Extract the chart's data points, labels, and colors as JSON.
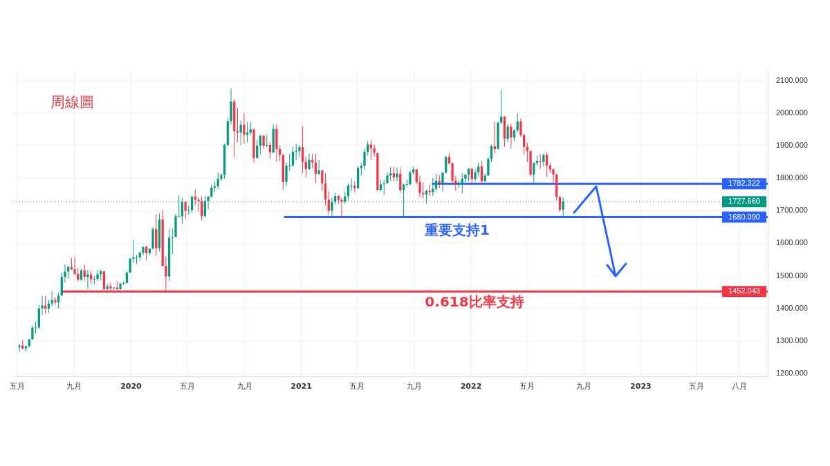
{
  "chart_data": {
    "type": "candlestick",
    "title": "周線圖",
    "x": [
      "2019-05-06",
      "2019-05-13",
      "2019-05-20",
      "2019-05-27",
      "2019-06-03",
      "2019-06-10",
      "2019-06-17",
      "2019-06-24",
      "2019-07-01",
      "2019-07-08",
      "2019-07-15",
      "2019-07-22",
      "2019-07-29",
      "2019-08-05",
      "2019-08-12",
      "2019-08-19",
      "2019-08-26",
      "2019-09-02",
      "2019-09-09",
      "2019-09-16",
      "2019-09-23",
      "2019-09-30",
      "2019-10-07",
      "2019-10-14",
      "2019-10-21",
      "2019-10-28",
      "2019-11-04",
      "2019-11-11",
      "2019-11-18",
      "2019-11-25",
      "2019-12-02",
      "2019-12-09",
      "2019-12-16",
      "2019-12-23",
      "2019-12-30",
      "2020-01-06",
      "2020-01-13",
      "2020-01-20",
      "2020-01-27",
      "2020-02-03",
      "2020-02-10",
      "2020-02-17",
      "2020-02-24",
      "2020-03-02",
      "2020-03-09",
      "2020-03-16",
      "2020-03-23",
      "2020-03-30",
      "2020-04-06",
      "2020-04-13",
      "2020-04-20",
      "2020-04-27",
      "2020-05-04",
      "2020-05-11",
      "2020-05-18",
      "2020-05-25",
      "2020-06-01",
      "2020-06-08",
      "2020-06-15",
      "2020-06-22",
      "2020-06-29",
      "2020-07-06",
      "2020-07-13",
      "2020-07-20",
      "2020-07-27",
      "2020-08-03",
      "2020-08-10",
      "2020-08-17",
      "2020-08-24",
      "2020-08-31",
      "2020-09-07",
      "2020-09-14",
      "2020-09-21",
      "2020-09-28",
      "2020-10-05",
      "2020-10-12",
      "2020-10-19",
      "2020-10-26",
      "2020-11-02",
      "2020-11-09",
      "2020-11-16",
      "2020-11-23",
      "2020-11-30",
      "2020-12-07",
      "2020-12-14",
      "2020-12-21",
      "2020-12-28",
      "2021-01-04",
      "2021-01-11",
      "2021-01-18",
      "2021-01-25",
      "2021-02-01",
      "2021-02-08",
      "2021-02-15",
      "2021-02-22",
      "2021-03-01",
      "2021-03-08",
      "2021-03-15",
      "2021-03-22",
      "2021-03-29",
      "2021-04-05",
      "2021-04-12",
      "2021-04-19",
      "2021-04-26",
      "2021-05-03",
      "2021-05-10",
      "2021-05-17",
      "2021-05-24",
      "2021-05-31",
      "2021-06-07",
      "2021-06-14",
      "2021-06-21",
      "2021-06-28",
      "2021-07-05",
      "2021-07-12",
      "2021-07-19",
      "2021-07-26",
      "2021-08-02",
      "2021-08-09",
      "2021-08-16",
      "2021-08-23",
      "2021-08-30",
      "2021-09-06",
      "2021-09-13",
      "2021-09-20",
      "2021-09-27",
      "2021-10-04",
      "2021-10-11",
      "2021-10-18",
      "2021-10-25",
      "2021-11-01",
      "2021-11-08",
      "2021-11-15",
      "2021-11-22",
      "2021-11-29",
      "2021-12-06",
      "2021-12-13",
      "2021-12-20",
      "2021-12-27",
      "2022-01-03",
      "2022-01-10",
      "2022-01-17",
      "2022-01-24",
      "2022-01-31",
      "2022-02-07",
      "2022-02-14",
      "2022-02-21",
      "2022-02-28",
      "2022-03-07",
      "2022-03-14",
      "2022-03-21",
      "2022-03-28",
      "2022-04-04",
      "2022-04-11",
      "2022-04-18",
      "2022-04-25",
      "2022-05-02",
      "2022-05-09",
      "2022-05-16",
      "2022-05-23",
      "2022-05-30",
      "2022-06-06",
      "2022-06-13",
      "2022-06-20",
      "2022-06-27",
      "2022-07-04",
      "2022-07-11",
      "2022-07-18"
    ],
    "ohlc": [
      [
        1282,
        1290,
        1266,
        1286
      ],
      [
        1286,
        1303,
        1274,
        1277
      ],
      [
        1277,
        1286,
        1268,
        1284
      ],
      [
        1284,
        1306,
        1280,
        1305
      ],
      [
        1305,
        1348,
        1304,
        1341
      ],
      [
        1341,
        1359,
        1323,
        1341
      ],
      [
        1341,
        1411,
        1338,
        1400
      ],
      [
        1400,
        1439,
        1381,
        1409
      ],
      [
        1409,
        1438,
        1383,
        1399
      ],
      [
        1399,
        1426,
        1386,
        1415
      ],
      [
        1415,
        1453,
        1406,
        1426
      ],
      [
        1426,
        1434,
        1411,
        1419
      ],
      [
        1419,
        1449,
        1400,
        1440
      ],
      [
        1440,
        1510,
        1437,
        1497
      ],
      [
        1497,
        1535,
        1480,
        1513
      ],
      [
        1513,
        1531,
        1491,
        1527
      ],
      [
        1527,
        1555,
        1518,
        1520
      ],
      [
        1520,
        1557,
        1502,
        1506
      ],
      [
        1506,
        1524,
        1484,
        1488
      ],
      [
        1488,
        1522,
        1485,
        1517
      ],
      [
        1517,
        1535,
        1485,
        1497
      ],
      [
        1497,
        1519,
        1459,
        1504
      ],
      [
        1504,
        1517,
        1474,
        1489
      ],
      [
        1489,
        1500,
        1474,
        1490
      ],
      [
        1490,
        1518,
        1484,
        1505
      ],
      [
        1505,
        1519,
        1486,
        1514
      ],
      [
        1514,
        1514,
        1456,
        1459
      ],
      [
        1459,
        1475,
        1456,
        1468
      ],
      [
        1468,
        1478,
        1455,
        1462
      ],
      [
        1462,
        1465,
        1456,
        1464
      ],
      [
        1464,
        1485,
        1457,
        1459
      ],
      [
        1459,
        1479,
        1456,
        1476
      ],
      [
        1476,
        1483,
        1472,
        1478
      ],
      [
        1478,
        1514,
        1477,
        1510
      ],
      [
        1510,
        1555,
        1509,
        1552
      ],
      [
        1552,
        1611,
        1540,
        1557
      ],
      [
        1557,
        1563,
        1536,
        1557
      ],
      [
        1557,
        1575,
        1549,
        1571
      ],
      [
        1571,
        1589,
        1563,
        1589
      ],
      [
        1589,
        1591,
        1547,
        1570
      ],
      [
        1570,
        1584,
        1564,
        1584
      ],
      [
        1584,
        1649,
        1581,
        1643
      ],
      [
        1643,
        1689,
        1563,
        1585
      ],
      [
        1585,
        1692,
        1576,
        1673
      ],
      [
        1673,
        1703,
        1529,
        1530
      ],
      [
        1530,
        1560,
        1451,
        1498
      ],
      [
        1498,
        1645,
        1484,
        1617
      ],
      [
        1617,
        1645,
        1567,
        1620
      ],
      [
        1620,
        1690,
        1619,
        1683
      ],
      [
        1683,
        1747,
        1681,
        1683
      ],
      [
        1683,
        1739,
        1659,
        1727
      ],
      [
        1727,
        1730,
        1675,
        1700
      ],
      [
        1700,
        1716,
        1688,
        1702
      ],
      [
        1702,
        1745,
        1693,
        1743
      ],
      [
        1743,
        1765,
        1717,
        1734
      ],
      [
        1734,
        1741,
        1697,
        1730
      ],
      [
        1730,
        1744,
        1670,
        1683
      ],
      [
        1683,
        1745,
        1680,
        1730
      ],
      [
        1730,
        1745,
        1705,
        1743
      ],
      [
        1743,
        1779,
        1741,
        1771
      ],
      [
        1771,
        1789,
        1757,
        1775
      ],
      [
        1775,
        1818,
        1767,
        1798
      ],
      [
        1798,
        1815,
        1792,
        1810
      ],
      [
        1810,
        1907,
        1798,
        1902
      ],
      [
        1902,
        1984,
        1898,
        1975
      ],
      [
        1975,
        2075,
        1965,
        2035
      ],
      [
        2035,
        2042,
        1863,
        1944
      ],
      [
        1944,
        2015,
        1911,
        1940
      ],
      [
        1940,
        1977,
        1902,
        1964
      ],
      [
        1964,
        2000,
        1905,
        1933
      ],
      [
        1933,
        1973,
        1910,
        1940
      ],
      [
        1940,
        1973,
        1932,
        1950
      ],
      [
        1950,
        1952,
        1848,
        1862
      ],
      [
        1862,
        1917,
        1860,
        1900
      ],
      [
        1900,
        1933,
        1873,
        1930
      ],
      [
        1930,
        1933,
        1890,
        1900
      ],
      [
        1900,
        1933,
        1895,
        1902
      ],
      [
        1902,
        1911,
        1860,
        1879
      ],
      [
        1879,
        1965,
        1877,
        1951
      ],
      [
        1951,
        1965,
        1850,
        1889
      ],
      [
        1889,
        1900,
        1853,
        1871
      ],
      [
        1871,
        1875,
        1764,
        1788
      ],
      [
        1788,
        1848,
        1775,
        1839
      ],
      [
        1839,
        1875,
        1822,
        1839
      ],
      [
        1839,
        1897,
        1835,
        1881
      ],
      [
        1881,
        1906,
        1855,
        1883
      ],
      [
        1883,
        1901,
        1863,
        1895
      ],
      [
        1895,
        1959,
        1816,
        1850
      ],
      [
        1850,
        1866,
        1803,
        1828
      ],
      [
        1828,
        1875,
        1826,
        1856
      ],
      [
        1856,
        1876,
        1831,
        1848
      ],
      [
        1848,
        1875,
        1785,
        1813
      ],
      [
        1813,
        1855,
        1810,
        1824
      ],
      [
        1824,
        1824,
        1760,
        1784
      ],
      [
        1784,
        1816,
        1717,
        1734
      ],
      [
        1734,
        1759,
        1687,
        1700
      ],
      [
        1700,
        1740,
        1677,
        1727
      ],
      [
        1727,
        1755,
        1718,
        1745
      ],
      [
        1745,
        1747,
        1719,
        1733
      ],
      [
        1733,
        1740,
        1677,
        1728
      ],
      [
        1728,
        1758,
        1721,
        1744
      ],
      [
        1744,
        1784,
        1731,
        1777
      ],
      [
        1777,
        1798,
        1761,
        1777
      ],
      [
        1777,
        1790,
        1756,
        1769
      ],
      [
        1769,
        1836,
        1768,
        1831
      ],
      [
        1831,
        1846,
        1808,
        1838
      ],
      [
        1838,
        1890,
        1825,
        1881
      ],
      [
        1881,
        1913,
        1870,
        1903
      ],
      [
        1903,
        1916,
        1855,
        1892
      ],
      [
        1892,
        1903,
        1866,
        1877
      ],
      [
        1877,
        1878,
        1761,
        1764
      ],
      [
        1764,
        1795,
        1761,
        1781
      ],
      [
        1781,
        1795,
        1750,
        1784
      ],
      [
        1784,
        1818,
        1784,
        1808
      ],
      [
        1808,
        1834,
        1792,
        1815
      ],
      [
        1815,
        1834,
        1789,
        1802
      ],
      [
        1802,
        1832,
        1791,
        1814
      ],
      [
        1814,
        1832,
        1757,
        1763
      ],
      [
        1763,
        1783,
        1677,
        1780
      ],
      [
        1780,
        1796,
        1773,
        1781
      ],
      [
        1781,
        1823,
        1778,
        1818
      ],
      [
        1818,
        1834,
        1811,
        1827
      ],
      [
        1827,
        1827,
        1782,
        1788
      ],
      [
        1788,
        1808,
        1742,
        1754
      ],
      [
        1754,
        1787,
        1737,
        1750
      ],
      [
        1750,
        1765,
        1721,
        1761
      ],
      [
        1761,
        1781,
        1746,
        1757
      ],
      [
        1757,
        1801,
        1745,
        1767
      ],
      [
        1767,
        1814,
        1760,
        1792
      ],
      [
        1792,
        1810,
        1770,
        1783
      ],
      [
        1783,
        1818,
        1758,
        1817
      ],
      [
        1817,
        1869,
        1815,
        1865
      ],
      [
        1865,
        1877,
        1843,
        1845
      ],
      [
        1845,
        1849,
        1779,
        1792
      ],
      [
        1792,
        1808,
        1762,
        1783
      ],
      [
        1783,
        1793,
        1770,
        1783
      ],
      [
        1783,
        1815,
        1753,
        1798
      ],
      [
        1798,
        1812,
        1788,
        1811
      ],
      [
        1811,
        1831,
        1790,
        1829
      ],
      [
        1829,
        1831,
        1782,
        1797
      ],
      [
        1797,
        1828,
        1790,
        1818
      ],
      [
        1818,
        1848,
        1805,
        1836
      ],
      [
        1836,
        1853,
        1781,
        1791
      ],
      [
        1791,
        1814,
        1788,
        1808
      ],
      [
        1808,
        1865,
        1807,
        1859
      ],
      [
        1859,
        1903,
        1850,
        1898
      ],
      [
        1898,
        1974,
        1878,
        1889
      ],
      [
        1889,
        1974,
        1888,
        1970
      ],
      [
        1970,
        2070,
        1966,
        1989
      ],
      [
        1989,
        1990,
        1895,
        1921
      ],
      [
        1921,
        1966,
        1910,
        1958
      ],
      [
        1958,
        1966,
        1890,
        1925
      ],
      [
        1925,
        1949,
        1915,
        1947
      ],
      [
        1947,
        1998,
        1940,
        1974
      ],
      [
        1974,
        1982,
        1926,
        1932
      ],
      [
        1932,
        1936,
        1872,
        1896
      ],
      [
        1896,
        1909,
        1850,
        1883
      ],
      [
        1883,
        1884,
        1807,
        1811
      ],
      [
        1811,
        1849,
        1786,
        1846
      ],
      [
        1846,
        1869,
        1840,
        1853
      ],
      [
        1853,
        1874,
        1828,
        1850
      ],
      [
        1850,
        1875,
        1836,
        1871
      ],
      [
        1871,
        1879,
        1805,
        1839
      ],
      [
        1839,
        1847,
        1816,
        1827
      ],
      [
        1827,
        1830,
        1784,
        1811
      ],
      [
        1811,
        1814,
        1732,
        1742
      ],
      [
        1742,
        1745,
        1697,
        1703
      ],
      [
        1703,
        1740,
        1680,
        1727.66
      ]
    ],
    "series": [
      {
        "type": "line",
        "color": "#2962ff",
        "x": [
          "2021-10-09",
          "2023-10-01"
        ],
        "values": [
          1782.322,
          1782.322
        ],
        "value_labels": [
          null,
          "1782.322"
        ]
      },
      {
        "type": "line",
        "color": "#2962ff",
        "x": [
          "2020-11-25",
          "2023-10-01"
        ],
        "values": [
          1680.09,
          1680.09
        ],
        "value_labels": [
          null,
          "1680.090"
        ]
      },
      {
        "type": "line",
        "color": "#f23645",
        "x": [
          "2019-08-03",
          "2023-10-01"
        ],
        "values": [
          1452.043,
          1452.043
        ],
        "value_labels": [
          null,
          "1452.043"
        ]
      }
    ],
    "ref_lines": [
      {
        "axis": "y",
        "value": 1727.66,
        "label": "1727.660",
        "color": "#089981",
        "line_style": "dotted"
      }
    ],
    "annotations": [
      "重要支持1",
      "0.618比率支持"
    ],
    "xlim": [
      "2019-04-24",
      "2023-10-01"
    ],
    "xticks": [
      {
        "value": "2019-05-01",
        "label": "五月"
      },
      {
        "value": "2019-09-01",
        "label": "九月"
      },
      {
        "value": "2020-01-01",
        "label": "2020"
      },
      {
        "value": "2020-05-01",
        "label": "五月"
      },
      {
        "value": "2020-09-01",
        "label": "九月"
      },
      {
        "value": "2021-01-01",
        "label": "2021"
      },
      {
        "value": "2021-05-01",
        "label": "五月"
      },
      {
        "value": "2021-09-01",
        "label": "九月"
      },
      {
        "value": "2022-01-01",
        "label": "2022"
      },
      {
        "value": "2022-05-01",
        "label": "五月"
      },
      {
        "value": "2022-09-01",
        "label": "九月"
      },
      {
        "value": "2023-01-01",
        "label": "2023"
      },
      {
        "value": "2023-05-01",
        "label": "五月"
      },
      {
        "value": "2023-08-01",
        "label": "八月"
      }
    ],
    "ylim": [
      1190,
      2135
    ],
    "yticks": [
      {
        "value": 1200,
        "label": "1200.000"
      },
      {
        "value": 1300,
        "label": "1300.000"
      },
      {
        "value": 1400,
        "label": "1400.000"
      },
      {
        "value": 1500,
        "label": "1500.000"
      },
      {
        "value": 1600,
        "label": "1600.000"
      },
      {
        "value": 1700,
        "label": "1700.000"
      },
      {
        "value": 1800,
        "label": "1800.000"
      },
      {
        "value": 1900,
        "label": "1900.000"
      },
      {
        "value": 2000,
        "label": "2000.000"
      },
      {
        "value": 2100,
        "label": "2100.000"
      }
    ],
    "grid": true,
    "legend": false,
    "marker": "none"
  }
}
